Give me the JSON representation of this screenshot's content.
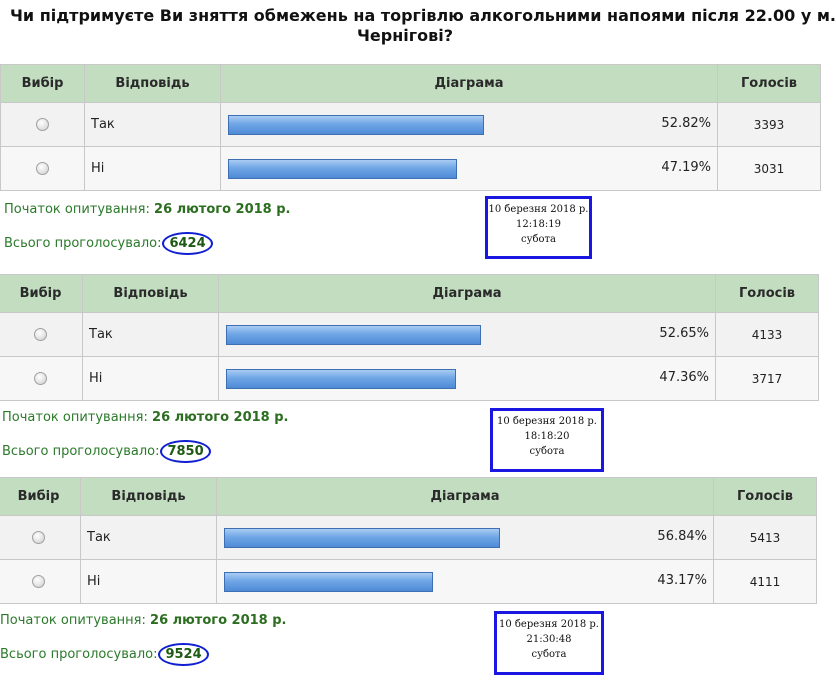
{
  "title": {
    "line1": "Чи підтримуєте Ви зняття обмежень на торгівлю алкогольними напоями після 22.00 у м.",
    "line2": "Чернігові?"
  },
  "columns": {
    "select": "Вибір",
    "answer": "Відповідь",
    "chart": "Діаграма",
    "votes": "Голосів"
  },
  "labels": {
    "start": "Початок опитування:",
    "total": "Всього проголосувало:"
  },
  "polls": [
    {
      "rows": [
        {
          "answer": "Так",
          "percent_label": "52.82%",
          "percent": 52.82,
          "votes": "3393"
        },
        {
          "answer": "Ні",
          "percent_label": "47.19%",
          "percent": 47.19,
          "votes": "3031"
        }
      ],
      "start_date": "26 лютого 2018 р.",
      "total": "6424",
      "snapshot": {
        "date": "10 березня 2018 р.",
        "time": "12:18:19",
        "day": "субота"
      }
    },
    {
      "rows": [
        {
          "answer": "Так",
          "percent_label": "52.65%",
          "percent": 52.65,
          "votes": "4133"
        },
        {
          "answer": "Ні",
          "percent_label": "47.36%",
          "percent": 47.36,
          "votes": "3717"
        }
      ],
      "start_date": "26 лютого 2018 р.",
      "total": "7850",
      "snapshot": {
        "date": "10 березня 2018 р.",
        "time": "18:18:20",
        "day": "субота"
      }
    },
    {
      "rows": [
        {
          "answer": "Так",
          "percent_label": "56.84%",
          "percent": 56.84,
          "votes": "5413"
        },
        {
          "answer": "Ні",
          "percent_label": "43.17%",
          "percent": 43.17,
          "votes": "4111"
        }
      ],
      "start_date": "26 лютого 2018 р.",
      "total": "9524",
      "snapshot": {
        "date": "10 березня 2018 р.",
        "time": "21:30:48",
        "day": "субота"
      }
    }
  ],
  "colors": {
    "header_bg": "#c2ddc0",
    "label_green": "#2b7a2b",
    "annotation_blue": "#1a18e0",
    "bar_blue": "#6fa6e6"
  }
}
